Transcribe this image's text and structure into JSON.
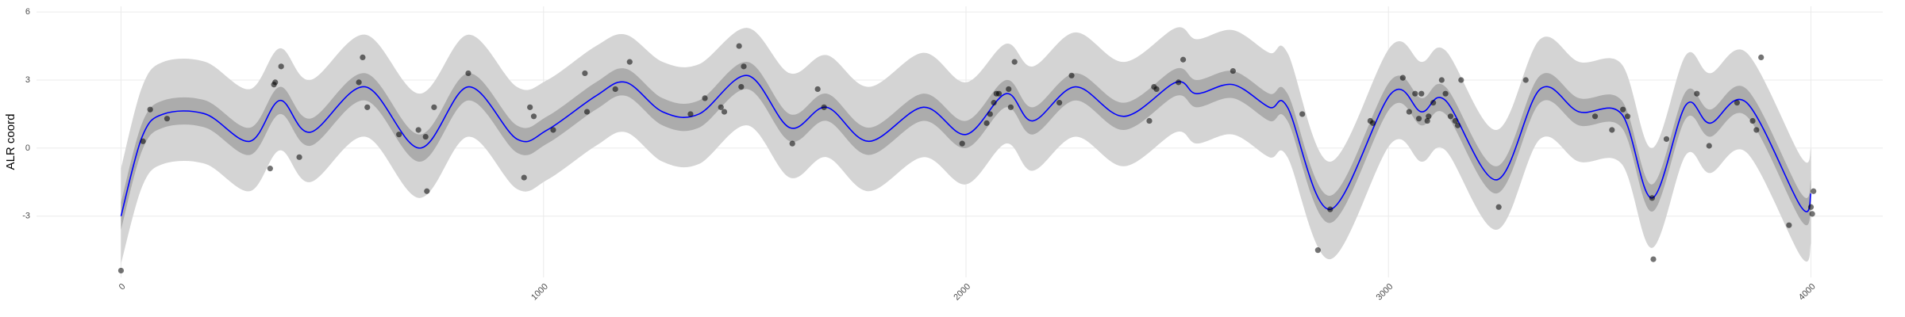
{
  "chart_data": {
    "type": "line",
    "y_label": "ALR coord",
    "xlim": [
      -200,
      4170
    ],
    "ylim": [
      -5.7,
      6.25
    ],
    "xticks": [
      0,
      1000,
      2000,
      3000,
      4000
    ],
    "yticks": [
      -3,
      0,
      3,
      6
    ],
    "grid": true,
    "x": [
      0,
      50,
      100,
      200,
      305,
      376,
      448,
      578,
      707,
      822,
      937,
      1009,
      1124,
      1195,
      1282,
      1368,
      1483,
      1583,
      1670,
      1770,
      1899,
      2000,
      2095,
      2158,
      2259,
      2374,
      2497,
      2546,
      2632,
      2718,
      2761,
      2862,
      3006,
      3078,
      3135,
      3256,
      3359,
      3451,
      3552,
      3624,
      3704,
      3761,
      3848,
      3977,
      4000
    ],
    "line": {
      "color": "#0000ff",
      "values": [
        -3.0,
        0.5,
        1.5,
        1.5,
        0.3,
        2.1,
        0.7,
        2.7,
        0.0,
        2.7,
        0.4,
        0.8,
        2.3,
        2.9,
        1.6,
        1.5,
        3.2,
        0.9,
        1.8,
        0.3,
        1.8,
        0.6,
        2.4,
        1.2,
        2.7,
        1.4,
        2.9,
        2.4,
        2.8,
        1.8,
        1.8,
        -2.7,
        2.4,
        1.6,
        2.1,
        -1.4,
        2.6,
        1.6,
        1.5,
        -2.2,
        1.9,
        1.1,
        2.0,
        -2.6,
        -2.0
      ]
    },
    "bands": [
      {
        "color": "#d4d4d4",
        "upper": [
          -0.9,
          2.7,
          3.8,
          3.8,
          2.6,
          4.4,
          3.0,
          5.0,
          2.4,
          5.0,
          2.7,
          3.0,
          4.5,
          5.0,
          3.8,
          3.7,
          5.3,
          3.3,
          4.1,
          2.7,
          4.2,
          2.9,
          4.6,
          3.6,
          5.1,
          3.8,
          5.3,
          4.8,
          5.2,
          4.2,
          4.2,
          -0.6,
          4.5,
          3.8,
          4.3,
          0.8,
          4.8,
          3.8,
          3.7,
          0.0,
          4.1,
          3.3,
          4.2,
          -0.4,
          0.0
        ],
        "lower": [
          -5.1,
          -1.7,
          -0.7,
          -0.7,
          -1.9,
          -0.1,
          -1.5,
          0.5,
          -2.2,
          0.5,
          -1.8,
          -1.4,
          0.1,
          0.7,
          -0.6,
          -0.7,
          1.0,
          -1.3,
          -0.4,
          -1.9,
          -0.4,
          -1.6,
          0.2,
          -1.0,
          0.5,
          -0.8,
          0.7,
          0.2,
          0.6,
          -0.4,
          -0.4,
          -4.9,
          0.2,
          -0.6,
          -0.1,
          -3.6,
          0.4,
          -0.6,
          -0.7,
          -4.4,
          -0.3,
          -1.1,
          -0.2,
          -4.8,
          -4.2
        ]
      },
      {
        "color": "#acacac",
        "upper": [
          -2.4,
          1.1,
          2.1,
          2.1,
          0.9,
          2.7,
          1.3,
          3.3,
          0.6,
          3.3,
          1.0,
          1.4,
          2.9,
          3.5,
          2.2,
          2.1,
          3.8,
          1.5,
          2.4,
          0.9,
          2.4,
          1.2,
          3.0,
          1.8,
          3.3,
          2.0,
          3.5,
          3.0,
          3.4,
          2.4,
          2.4,
          -2.1,
          3.0,
          2.2,
          2.7,
          -0.8,
          3.2,
          2.2,
          2.1,
          -1.6,
          2.5,
          1.7,
          2.6,
          -2.0,
          -1.4
        ],
        "lower": [
          -3.6,
          -0.1,
          0.9,
          0.9,
          -0.3,
          1.5,
          0.1,
          2.1,
          -0.6,
          2.1,
          -0.2,
          0.2,
          1.7,
          2.3,
          1.0,
          0.9,
          2.6,
          0.3,
          1.2,
          -0.3,
          1.2,
          0.0,
          1.8,
          0.6,
          2.1,
          0.8,
          2.3,
          1.8,
          2.2,
          1.2,
          1.2,
          -3.3,
          1.8,
          1.0,
          1.5,
          -2.0,
          2.0,
          1.0,
          0.9,
          -2.8,
          1.3,
          0.5,
          1.4,
          -3.2,
          -2.6
        ]
      }
    ],
    "points": {
      "color": "#000000",
      "x": [
        0,
        52,
        69,
        109,
        353,
        362,
        365,
        379,
        422,
        563,
        572,
        583,
        658,
        704,
        721,
        724,
        741,
        822,
        954,
        968,
        977,
        1023,
        1098,
        1103,
        1170,
        1204,
        1348,
        1382,
        1420,
        1428,
        1463,
        1468,
        1474,
        1589,
        1649,
        1664,
        1991,
        2049,
        2057,
        2066,
        2072,
        2078,
        2101,
        2106,
        2115,
        2221,
        2250,
        2434,
        2445,
        2451,
        2503,
        2514,
        2632,
        2796,
        2833,
        2862,
        2957,
        2963,
        3034,
        3049,
        3063,
        3072,
        3078,
        3092,
        3095,
        3106,
        3126,
        3135,
        3147,
        3158,
        3164,
        3172,
        3261,
        3325,
        3489,
        3529,
        3555,
        3566,
        3624,
        3627,
        3658,
        3730,
        3759,
        3825,
        3862,
        3871,
        3882,
        3948,
        4000,
        4003,
        4006
      ],
      "y": [
        -5.4,
        0.3,
        1.7,
        1.3,
        -0.9,
        2.8,
        2.9,
        3.6,
        -0.4,
        2.9,
        4.0,
        1.8,
        0.6,
        0.8,
        0.5,
        -1.9,
        1.8,
        3.3,
        -1.3,
        1.8,
        1.4,
        0.8,
        3.3,
        1.6,
        2.6,
        3.8,
        1.5,
        2.2,
        1.8,
        1.6,
        4.5,
        2.7,
        3.6,
        0.2,
        2.6,
        1.8,
        0.2,
        1.1,
        1.5,
        2.0,
        2.4,
        2.4,
        2.6,
        1.8,
        3.8,
        2.0,
        3.2,
        1.2,
        2.7,
        2.6,
        2.9,
        3.9,
        3.4,
        1.5,
        -4.5,
        -2.7,
        1.2,
        1.1,
        3.1,
        1.6,
        2.4,
        1.3,
        2.4,
        1.2,
        1.4,
        2.0,
        3.0,
        2.4,
        1.4,
        1.2,
        1.0,
        3.0,
        -2.6,
        3.0,
        1.4,
        0.8,
        1.7,
        1.4,
        -2.2,
        -4.9,
        0.4,
        2.4,
        0.1,
        2.0,
        1.2,
        0.8,
        4.0,
        -3.4,
        -2.6,
        -2.9,
        -1.9
      ]
    }
  }
}
